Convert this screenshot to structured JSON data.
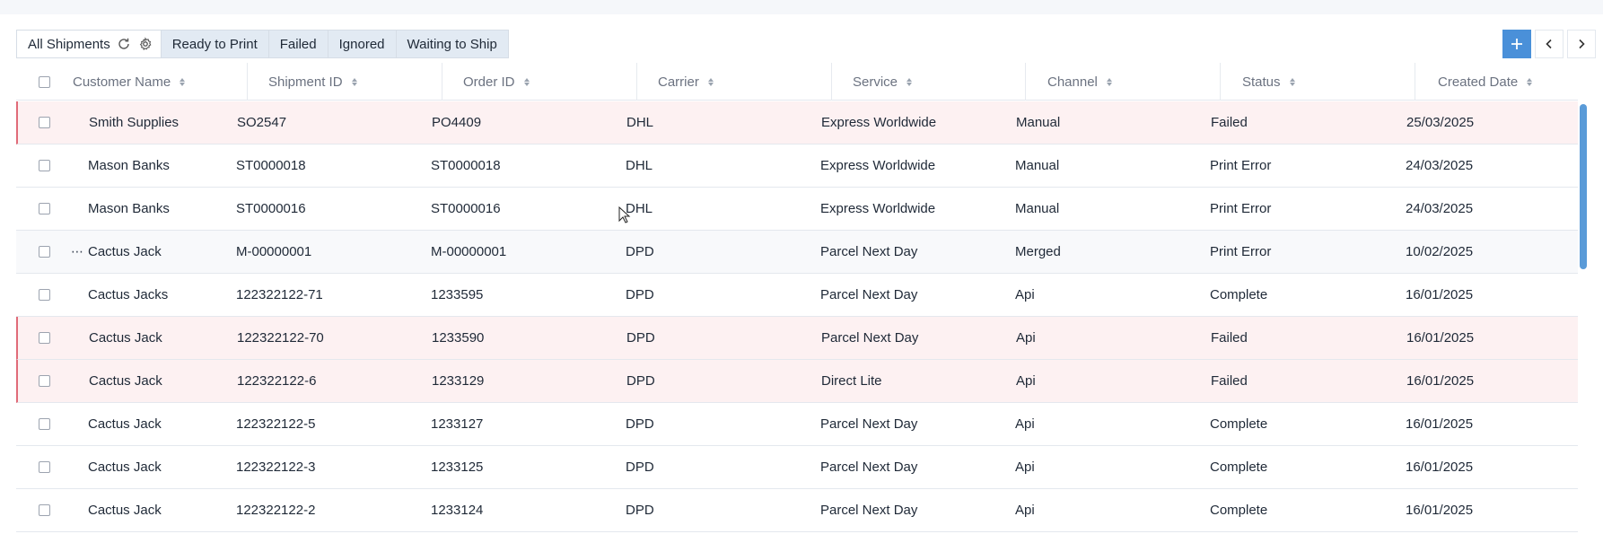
{
  "tabs": [
    {
      "label": "All Shipments",
      "active": true
    },
    {
      "label": "Ready to Print",
      "active": false
    },
    {
      "label": "Failed",
      "active": false
    },
    {
      "label": "Ignored",
      "active": false
    },
    {
      "label": "Waiting to Ship",
      "active": false
    }
  ],
  "icons": {
    "refresh": "refresh-icon",
    "settings": "gear-icon",
    "add": "plus-icon",
    "prev": "chevron-left-icon",
    "next": "chevron-right-icon",
    "more": "more-dots-icon"
  },
  "colors": {
    "accent": "#4a90d9",
    "failed_row_bg": "#fdf1f2",
    "failed_row_border": "#e06b78",
    "tab_bg": "#e2eaf3"
  },
  "columns": [
    "Customer Name",
    "Shipment ID",
    "Order ID",
    "Carrier",
    "Service",
    "Channel",
    "Status",
    "Created Date"
  ],
  "rows": [
    {
      "customer": "Smith Supplies",
      "shipment_id": "SO2547",
      "order_id": "PO4409",
      "carrier": "DHL",
      "service": "Express Worldwide",
      "channel": "Manual",
      "status": "Failed",
      "created": "25/03/2025"
    },
    {
      "customer": "Mason Banks",
      "shipment_id": "ST0000018",
      "order_id": "ST0000018",
      "carrier": "DHL",
      "service": "Express Worldwide",
      "channel": "Manual",
      "status": "Print Error",
      "created": "24/03/2025"
    },
    {
      "customer": "Mason Banks",
      "shipment_id": "ST0000016",
      "order_id": "ST0000016",
      "carrier": "DHL",
      "service": "Express Worldwide",
      "channel": "Manual",
      "status": "Print Error",
      "created": "24/03/2025"
    },
    {
      "customer": "Cactus Jack",
      "shipment_id": "M-00000001",
      "order_id": "M-00000001",
      "carrier": "DPD",
      "service": "Parcel Next Day",
      "channel": "Merged",
      "status": "Print Error",
      "created": "10/02/2025"
    },
    {
      "customer": "Cactus Jacks",
      "shipment_id": "122322122-71",
      "order_id": "1233595",
      "carrier": "DPD",
      "service": "Parcel Next Day",
      "channel": "Api",
      "status": "Complete",
      "created": "16/01/2025"
    },
    {
      "customer": "Cactus Jack",
      "shipment_id": "122322122-70",
      "order_id": "1233590",
      "carrier": "DPD",
      "service": "Parcel Next Day",
      "channel": "Api",
      "status": "Failed",
      "created": "16/01/2025"
    },
    {
      "customer": "Cactus Jack",
      "shipment_id": "122322122-6",
      "order_id": "1233129",
      "carrier": "DPD",
      "service": "Direct Lite",
      "channel": "Api",
      "status": "Failed",
      "created": "16/01/2025"
    },
    {
      "customer": "Cactus Jack",
      "shipment_id": "122322122-5",
      "order_id": "1233127",
      "carrier": "DPD",
      "service": "Parcel Next Day",
      "channel": "Api",
      "status": "Complete",
      "created": "16/01/2025"
    },
    {
      "customer": "Cactus Jack",
      "shipment_id": "122322122-3",
      "order_id": "1233125",
      "carrier": "DPD",
      "service": "Parcel Next Day",
      "channel": "Api",
      "status": "Complete",
      "created": "16/01/2025"
    },
    {
      "customer": "Cactus Jack",
      "shipment_id": "122322122-2",
      "order_id": "1233124",
      "carrier": "DPD",
      "service": "Parcel Next Day",
      "channel": "Api",
      "status": "Complete",
      "created": "16/01/2025"
    }
  ],
  "row_actions_row": 3,
  "dots_label": "⋯"
}
